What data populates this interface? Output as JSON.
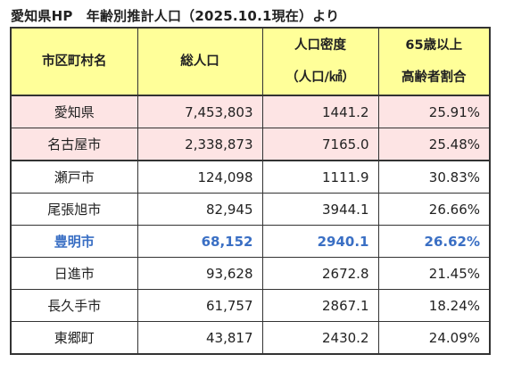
{
  "title": "愛知県HP　年齢別推計人口（2025.10.1現在）より",
  "headers": {
    "col1": "市区町村名",
    "col2": "総人口",
    "col3_line1": "人口密度",
    "col3_line2": "（人口/㎢）",
    "col4_line1": "65歳以上",
    "col4_line2": "高齢者割合"
  },
  "rows": [
    {
      "name": "愛知県",
      "population": "7,453,803",
      "density": "1441.2",
      "elderly": "25.91%"
    },
    {
      "name": "名古屋市",
      "population": "2,338,873",
      "density": "7165.0",
      "elderly": "25.48%"
    },
    {
      "name": "瀬戸市",
      "population": "124,098",
      "density": "1111.9",
      "elderly": "30.83%"
    },
    {
      "name": "尾張旭市",
      "population": "82,945",
      "density": "3944.1",
      "elderly": "26.66%"
    },
    {
      "name": "豊明市",
      "population": "68,152",
      "density": "2940.1",
      "elderly": "26.62%"
    },
    {
      "name": "日進市",
      "population": "93,628",
      "density": "2672.8",
      "elderly": "21.45%"
    },
    {
      "name": "長久手市",
      "population": "61,757",
      "density": "2867.1",
      "elderly": "18.24%"
    },
    {
      "name": "東郷町",
      "population": "43,817",
      "density": "2430.2",
      "elderly": "24.09%"
    }
  ],
  "colors": {
    "header_bg": "#ffff99",
    "highlight_row_bg": "#fde4e4",
    "focus_text": "#3a6fc4"
  }
}
